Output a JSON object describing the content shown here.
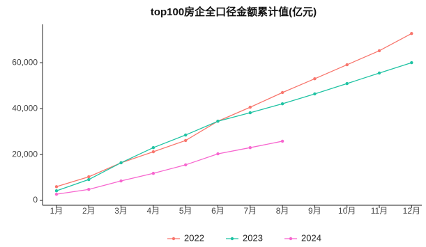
{
  "chart_data": {
    "type": "line",
    "title": "top100房企全口径金额累计值(亿元)",
    "categories": [
      "1月",
      "2月",
      "3月",
      "4月",
      "5月",
      "6月",
      "7月",
      "8月",
      "9月",
      "10月",
      "11月",
      "12月"
    ],
    "series": [
      {
        "name": "2022",
        "color": "#f8766d",
        "values": [
          6000,
          10300,
          16400,
          21200,
          26100,
          34500,
          40600,
          47000,
          53000,
          59100,
          65200,
          72700
        ]
      },
      {
        "name": "2023",
        "color": "#1fc3a3",
        "values": [
          4200,
          9100,
          16400,
          23000,
          28500,
          34500,
          38200,
          42100,
          46400,
          50900,
          55500,
          60000
        ]
      },
      {
        "name": "2024",
        "color": "#f766cf",
        "values": [
          2700,
          4800,
          8500,
          11800,
          15500,
          20300,
          23000,
          25800,
          null,
          null,
          null,
          null
        ]
      }
    ],
    "ylim": [
      -2100,
      76700
    ],
    "yticks": [
      0,
      {
        "value": 20000,
        "label": "20,000"
      },
      {
        "value": 40000,
        "label": "40,000"
      },
      {
        "value": 60000,
        "label": "60,000"
      }
    ],
    "grid": false,
    "legend": "bottom"
  }
}
